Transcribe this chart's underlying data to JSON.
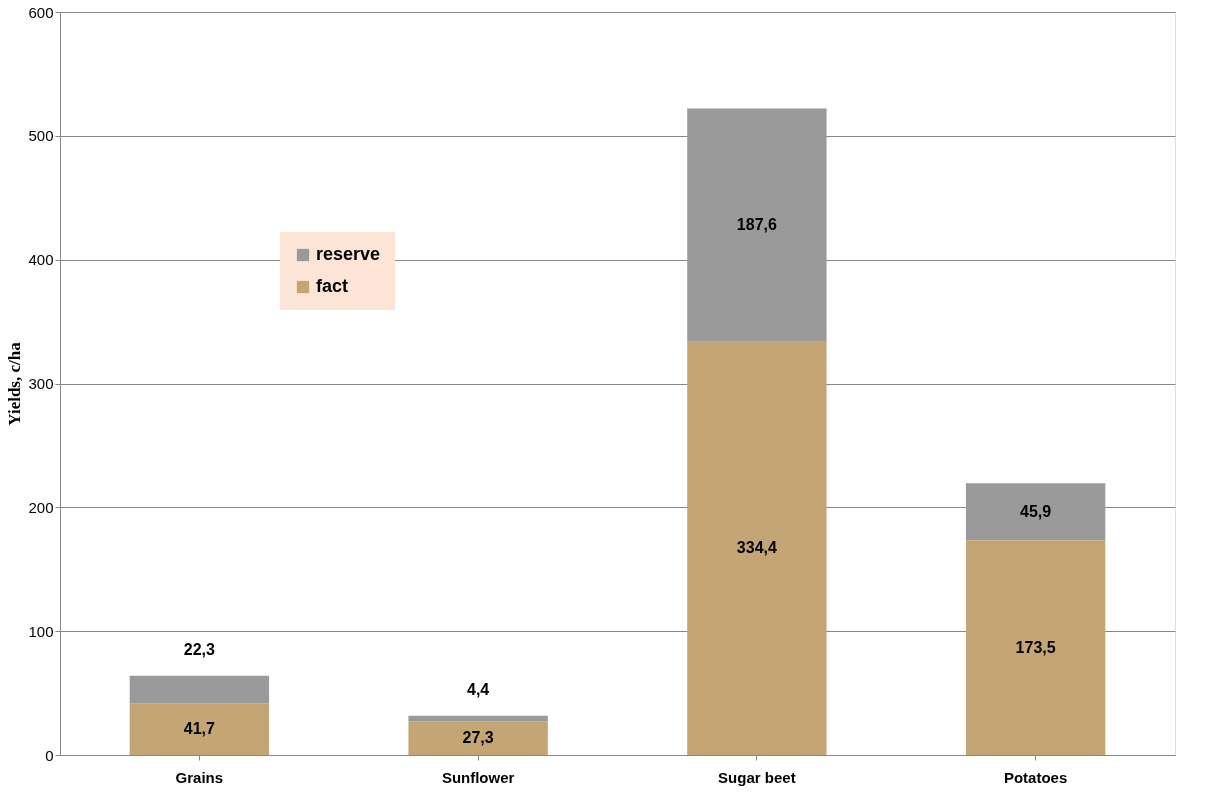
{
  "chart_data": {
    "type": "bar",
    "stacked": true,
    "ylabel": "Yields, c/ha",
    "categories": [
      "Grains",
      "Sunflower",
      "Sugar beet",
      "Potatoes"
    ],
    "series": [
      {
        "name": "fact",
        "color": "#c4a574",
        "values": [
          41.7,
          27.3,
          334.4,
          173.5
        ],
        "value_labels": [
          "41,7",
          "27,3",
          "334,4",
          "173,5"
        ]
      },
      {
        "name": "reserve",
        "color": "#9a9a9a",
        "values": [
          22.3,
          4.4,
          187.6,
          45.9
        ],
        "value_labels": [
          "22,3",
          "4,4",
          "187,6",
          "45,9"
        ]
      }
    ],
    "ylim": [
      0,
      600
    ],
    "yticks": [
      0,
      100,
      200,
      300,
      400,
      500,
      600
    ],
    "grid": "y",
    "legend": "top left"
  }
}
